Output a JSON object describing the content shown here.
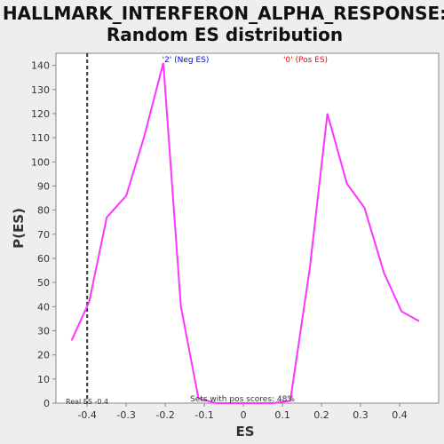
{
  "chart_data": {
    "type": "line",
    "title_line1": "HALLMARK_INTERFERON_ALPHA_RESPONSE:",
    "title_line2": "Random ES distribution",
    "xlabel": "ES",
    "ylabel": "P(ES)",
    "xlim": [
      -0.48,
      0.5
    ],
    "ylim": [
      0,
      145
    ],
    "x_ticks": [
      -0.4,
      -0.3,
      -0.2,
      -0.1,
      0.0,
      0.1,
      0.2,
      0.3,
      0.4
    ],
    "x_tick_labels": [
      "-0.4",
      "-0.3",
      "-0.2",
      "-0.1",
      "0",
      "0.1",
      "0.2",
      "0.3",
      "0.4"
    ],
    "y_ticks": [
      0,
      10,
      20,
      30,
      40,
      50,
      60,
      70,
      80,
      90,
      100,
      110,
      120,
      130,
      140
    ],
    "y_tick_labels": [
      "0",
      "10",
      "20",
      "30",
      "40",
      "50",
      "60",
      "70",
      "80",
      "90",
      "100",
      "110",
      "120",
      "130",
      "140"
    ],
    "grid": false,
    "series": [
      {
        "color": "#ff33ff",
        "x": [
          -0.44,
          -0.395,
          -0.35,
          -0.3,
          -0.255,
          -0.205,
          -0.16,
          -0.115,
          -0.07,
          -0.025,
          0.025,
          0.075,
          0.12,
          0.17,
          0.215,
          0.265,
          0.31,
          0.36,
          0.405,
          0.45
        ],
        "y": [
          26,
          42,
          77,
          86,
          110,
          141,
          40,
          2,
          0,
          0,
          0,
          0,
          1,
          56,
          120,
          91,
          81,
          54,
          38,
          34
        ]
      }
    ],
    "reference_line": {
      "x": -0.4,
      "color": "#333333",
      "label": "Real ES -0.4"
    },
    "annotations": {
      "neg_label": "'2' (Neg ES)",
      "neg_color": "#0000ff",
      "pos_label": "'0' (Pos ES)",
      "pos_color": "#ff0000",
      "pos_scores": "Sets with pos scores: 48%"
    }
  }
}
